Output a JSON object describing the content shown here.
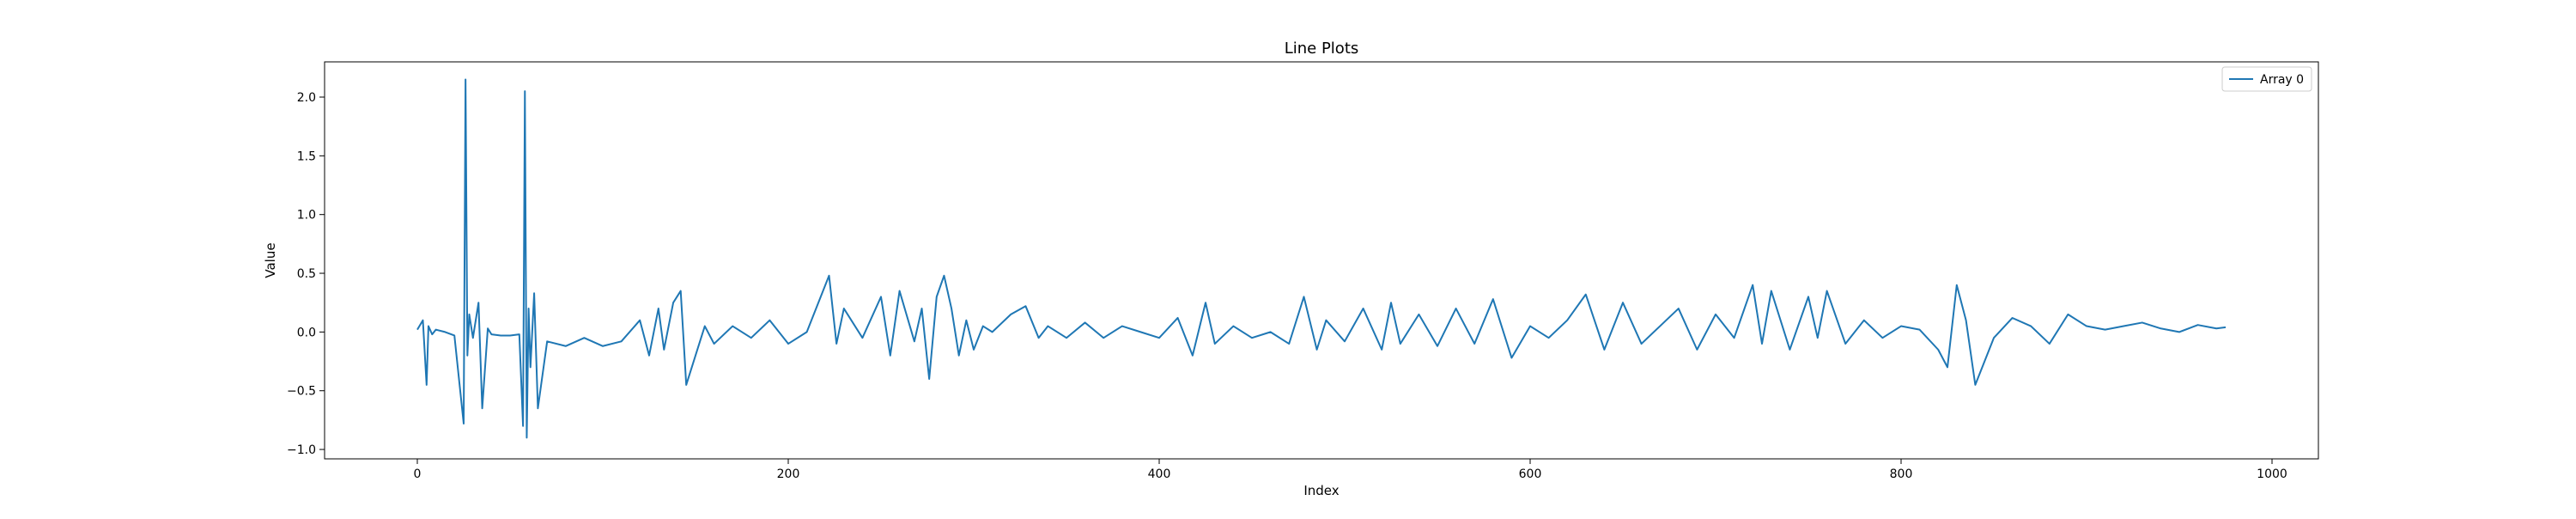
{
  "chart_data": {
    "type": "line",
    "title": "Line Plots",
    "xlabel": "Index",
    "ylabel": "Value",
    "xlim": [
      -50,
      1025
    ],
    "ylim": [
      -1.08,
      2.3
    ],
    "x_ticks": [
      0,
      200,
      400,
      600,
      800,
      1000
    ],
    "x_tick_labels": [
      "0",
      "200",
      "400",
      "600",
      "800",
      "1000"
    ],
    "y_ticks": [
      -1.0,
      -0.5,
      0.0,
      0.5,
      1.0,
      1.5,
      2.0
    ],
    "y_tick_labels": [
      "−1.0",
      "−0.5",
      "0.0",
      "0.5",
      "1.0",
      "1.5",
      "2.0"
    ],
    "grid": false,
    "legend_position": "top-right",
    "colors": {
      "series": "#1f77b4",
      "axes": "#000000",
      "background": "#ffffff"
    },
    "series": [
      {
        "name": "Array 0",
        "x": [
          0,
          3,
          5,
          6,
          8,
          10,
          15,
          20,
          25,
          26,
          27,
          28,
          30,
          33,
          35,
          38,
          40,
          45,
          50,
          55,
          57,
          58,
          59,
          60,
          61,
          63,
          65,
          70,
          80,
          90,
          100,
          110,
          120,
          125,
          130,
          133,
          138,
          142,
          145,
          150,
          155,
          160,
          170,
          180,
          190,
          200,
          210,
          222,
          226,
          230,
          240,
          250,
          255,
          260,
          268,
          272,
          276,
          280,
          284,
          288,
          292,
          296,
          300,
          305,
          310,
          320,
          328,
          335,
          340,
          350,
          360,
          370,
          380,
          390,
          400,
          410,
          418,
          425,
          430,
          440,
          450,
          460,
          470,
          478,
          485,
          490,
          500,
          510,
          520,
          525,
          530,
          540,
          550,
          560,
          570,
          580,
          590,
          600,
          610,
          620,
          630,
          640,
          650,
          660,
          670,
          680,
          690,
          700,
          710,
          720,
          725,
          730,
          740,
          750,
          755,
          760,
          770,
          780,
          790,
          800,
          810,
          820,
          825,
          830,
          835,
          840,
          850,
          860,
          870,
          880,
          890,
          900,
          910,
          920,
          930,
          940,
          950,
          960,
          970,
          975
        ],
        "y": [
          0.02,
          0.1,
          -0.45,
          0.05,
          -0.02,
          0.02,
          0.0,
          -0.03,
          -0.78,
          2.15,
          -0.2,
          0.15,
          -0.05,
          0.25,
          -0.65,
          0.03,
          -0.02,
          -0.03,
          -0.03,
          -0.02,
          -0.8,
          2.05,
          -0.9,
          0.2,
          -0.3,
          0.33,
          -0.65,
          -0.08,
          -0.12,
          -0.05,
          -0.12,
          -0.08,
          0.1,
          -0.2,
          0.2,
          -0.15,
          0.25,
          0.35,
          -0.45,
          -0.2,
          0.05,
          -0.1,
          0.05,
          -0.05,
          0.1,
          -0.1,
          0.0,
          0.48,
          -0.1,
          0.2,
          -0.05,
          0.3,
          -0.2,
          0.35,
          -0.08,
          0.2,
          -0.4,
          0.3,
          0.48,
          0.2,
          -0.2,
          0.1,
          -0.15,
          0.05,
          0.0,
          0.15,
          0.22,
          -0.05,
          0.05,
          -0.05,
          0.08,
          -0.05,
          0.05,
          0.0,
          -0.05,
          0.12,
          -0.2,
          0.25,
          -0.1,
          0.05,
          -0.05,
          0.0,
          -0.1,
          0.3,
          -0.15,
          0.1,
          -0.08,
          0.2,
          -0.15,
          0.25,
          -0.1,
          0.15,
          -0.12,
          0.2,
          -0.1,
          0.28,
          -0.22,
          0.05,
          -0.05,
          0.1,
          0.32,
          -0.15,
          0.25,
          -0.1,
          0.05,
          0.2,
          -0.15,
          0.15,
          -0.05,
          0.4,
          -0.1,
          0.35,
          -0.15,
          0.3,
          -0.05,
          0.35,
          -0.1,
          0.1,
          -0.05,
          0.05,
          0.02,
          -0.15,
          -0.3,
          0.4,
          0.1,
          -0.45,
          -0.05,
          0.12,
          0.05,
          -0.1,
          0.15,
          0.05,
          0.02,
          0.05,
          0.08,
          0.03,
          0.0,
          0.06,
          0.03,
          0.04
        ]
      }
    ]
  }
}
